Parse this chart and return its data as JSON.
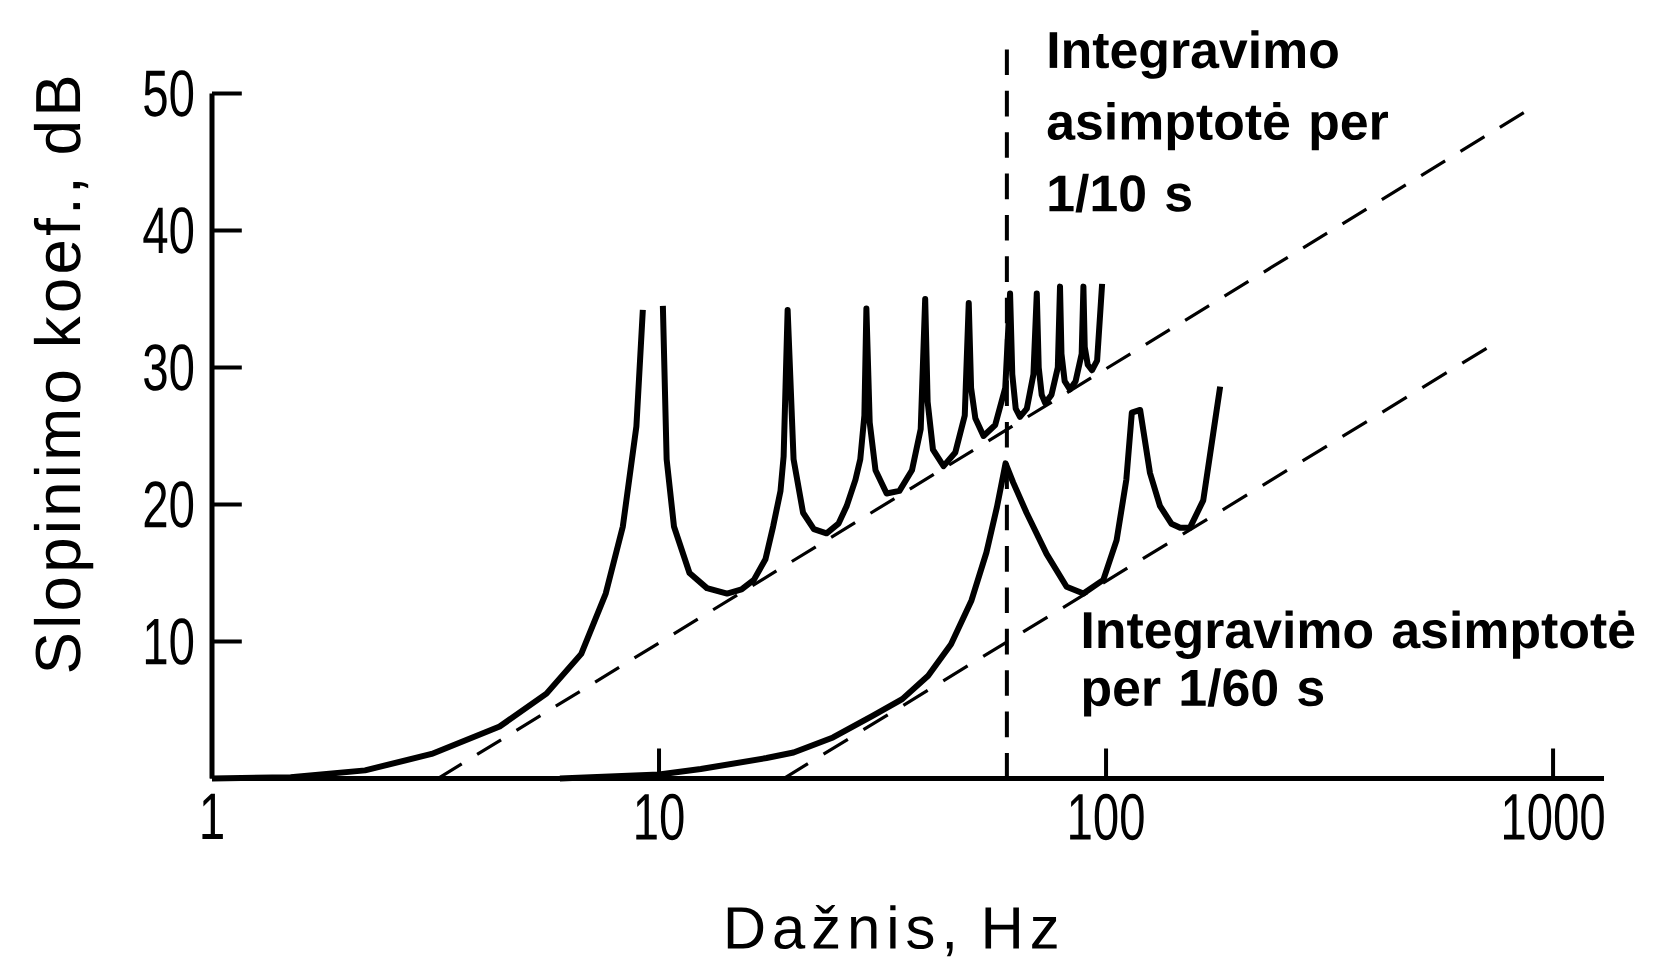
{
  "chart_data": {
    "type": "line",
    "xlabel": "Dažnis, Hz",
    "ylabel": "Slopinimo koef., dB",
    "log": "x",
    "xlim": [
      1,
      1300
    ],
    "ylim": [
      0,
      50
    ],
    "xticks": [
      1,
      10,
      100,
      1000
    ],
    "yticks": [
      10,
      20,
      30,
      40,
      50
    ],
    "series": [
      {
        "color": "#000000",
        "line_style": "solid",
        "x": [
          1,
          1.5,
          2.2,
          3.1,
          4.4,
          5.6,
          6.7,
          7.6,
          8.3,
          8.9,
          9.2,
          9.7,
          10.2,
          10.4,
          10.8,
          11.7,
          12.8,
          14.2,
          15.3,
          16.3,
          17.3,
          18.0,
          18.7,
          19.0,
          19.4,
          20.0,
          21.0,
          22.2,
          23.7,
          25.2,
          26.3,
          27.5,
          28.2,
          28.8,
          29.1,
          29.6,
          30.5,
          32.3,
          34.5,
          36.8,
          38.5,
          39.4,
          39.9,
          41.0,
          43.3,
          46.0,
          48.3,
          49.3,
          49.9,
          51.0,
          53.2,
          56.5,
          59.5,
          61.0,
          61.7,
          62.8,
          64.2,
          66.5,
          68.8,
          70.0,
          70.7,
          71.8,
          73.1,
          75.5,
          78.0,
          78.9,
          79.5,
          80.8,
          83.0,
          85.5,
          88.2,
          89.0,
          89.6,
          91.0,
          93.0,
          95.5,
          98.0
        ],
        "values": [
          0,
          0.1,
          0.6,
          1.8,
          3.8,
          6.2,
          9.1,
          13.5,
          18.4,
          25.7,
          34.2,
          null,
          34.5,
          23.3,
          18.4,
          15.0,
          13.9,
          13.5,
          13.8,
          14.5,
          16.0,
          18.4,
          21.0,
          23.5,
          34.2,
          23.3,
          19.4,
          18.2,
          17.9,
          18.6,
          19.9,
          21.8,
          23.3,
          26.5,
          34.3,
          26.0,
          22.5,
          20.8,
          21.0,
          22.5,
          25.5,
          35.0,
          27.5,
          24.0,
          22.8,
          23.8,
          26.5,
          34.7,
          28.5,
          26.3,
          25.0,
          25.8,
          28.5,
          35.4,
          29.5,
          27.0,
          26.4,
          27.0,
          29.5,
          35.4,
          30.0,
          28.0,
          27.4,
          28.0,
          30.0,
          35.9,
          31.0,
          29.0,
          28.4,
          29.0,
          31.0,
          35.9,
          31.5,
          30.2,
          29.8,
          30.5,
          36.1
        ]
      },
      {
        "color": "#000000",
        "line_style": "solid",
        "x": [
          6,
          10,
          12.4,
          17.4,
          20.0,
          24.5,
          30.1,
          35,
          40,
          45,
          50,
          54,
          57,
          59.6,
          62,
          66.4,
          73.6,
          81.6,
          89,
          98.6,
          105.6,
          111,
          114.2,
          119.2,
          125.4,
          132,
          140,
          146.5,
          154,
          165,
          173.7,
          180
        ],
        "values": [
          0,
          0.3,
          0.7,
          1.5,
          1.9,
          3.0,
          4.6,
          5.8,
          7.5,
          9.8,
          13.0,
          16.5,
          19.8,
          23.0,
          21.6,
          19.4,
          16.4,
          14.0,
          13.5,
          14.5,
          17.4,
          21.8,
          26.7,
          26.9,
          22.3,
          19.9,
          18.6,
          18.3,
          18.3,
          20.3,
          25.2,
          28.6
        ]
      },
      {
        "name": "Integravimo asimptotė per 1/10 s",
        "color": "#000000",
        "line_style": "dashed",
        "x": [
          3.2,
          860
        ],
        "values": [
          0,
          48.6
        ]
      },
      {
        "name": "Integravimo asimptotė per 1/60 s",
        "color": "#000000",
        "line_style": "dashed",
        "x": [
          19,
          710
        ],
        "values": [
          0,
          31.4
        ]
      }
    ],
    "ref_lines": [
      {
        "axis": "x",
        "value": 60,
        "line_style": "dashed",
        "color": "#000000"
      }
    ]
  }
}
